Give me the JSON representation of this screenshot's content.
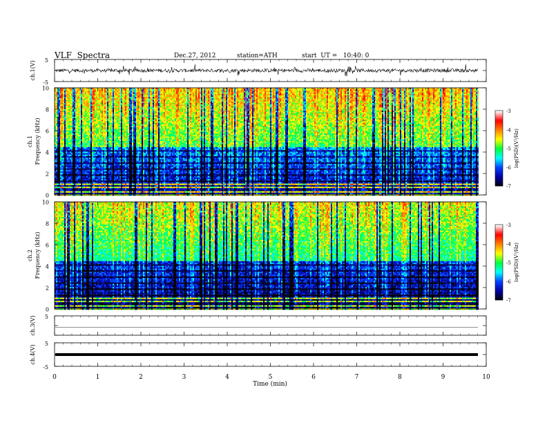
{
  "header": {
    "title": "VLF  Spectra",
    "date": "Dec.27, 2012",
    "station": "station=ATH",
    "start": "start  UT =   10:40: 0"
  },
  "chart_data": [
    {
      "type": "line",
      "ylabel": "ch.1(V)",
      "ylim": [
        -5,
        5
      ],
      "y_ticks": [
        "5",
        "-5"
      ],
      "xlim": [
        0,
        10
      ],
      "description_note": "",
      "series": [
        {
          "values": [
            0,
            0.4,
            -0.6,
            0.8,
            -1.2,
            0.5,
            -0.3,
            1.1,
            -0.9,
            0.2
          ]
        }
      ]
    },
    {
      "type": "heatmap",
      "ylabel": "ch.1\nFrequency  (kHz)",
      "ylim": [
        0,
        10
      ],
      "y_ticks": [
        "0",
        "2",
        "4",
        "6",
        "8",
        "10"
      ],
      "xlim": [
        0,
        9.8
      ],
      "colorbar": {
        "label": "log(PSD)(V²/Hz)",
        "range": [
          -7,
          -3
        ],
        "ticks": [
          "-3",
          "-4",
          "-5",
          "-6",
          "-7"
        ]
      }
    },
    {
      "type": "heatmap",
      "ylabel": "ch.2\nFrequency  (kHz)",
      "ylim": [
        0,
        10
      ],
      "y_ticks": [
        "0",
        "2",
        "4",
        "6",
        "8",
        "10"
      ],
      "xlim": [
        0,
        9.8
      ],
      "colorbar": {
        "label": "log(PSD)(V²/Hz)",
        "range": [
          -7,
          -3
        ],
        "ticks": [
          "-3",
          "-4",
          "-5",
          "-6",
          "-7"
        ]
      }
    },
    {
      "type": "line",
      "ylabel": "ch.3(V)",
      "ylim": [
        -5,
        5
      ],
      "y_ticks": [
        "5"
      ],
      "series": [
        {
          "values": [
            -0.8,
            -0.8
          ]
        }
      ]
    },
    {
      "type": "line",
      "ylabel": "ch.4(V)",
      "ylim": [
        -5,
        5
      ],
      "y_ticks": [
        "5",
        "-5"
      ],
      "series": [
        {
          "values": [
            0,
            0
          ]
        }
      ]
    }
  ],
  "x_axis": {
    "label": "Time  (min)",
    "ticks": [
      "0",
      "1",
      "2",
      "3",
      "4",
      "5",
      "6",
      "7",
      "8",
      "9",
      "10"
    ]
  },
  "colors": {
    "colormap": [
      "#000000",
      "#0000a0",
      "#0040ff",
      "#00ffff",
      "#00ff40",
      "#ffff00",
      "#ff8000",
      "#ff0000",
      "#ffffff"
    ]
  }
}
